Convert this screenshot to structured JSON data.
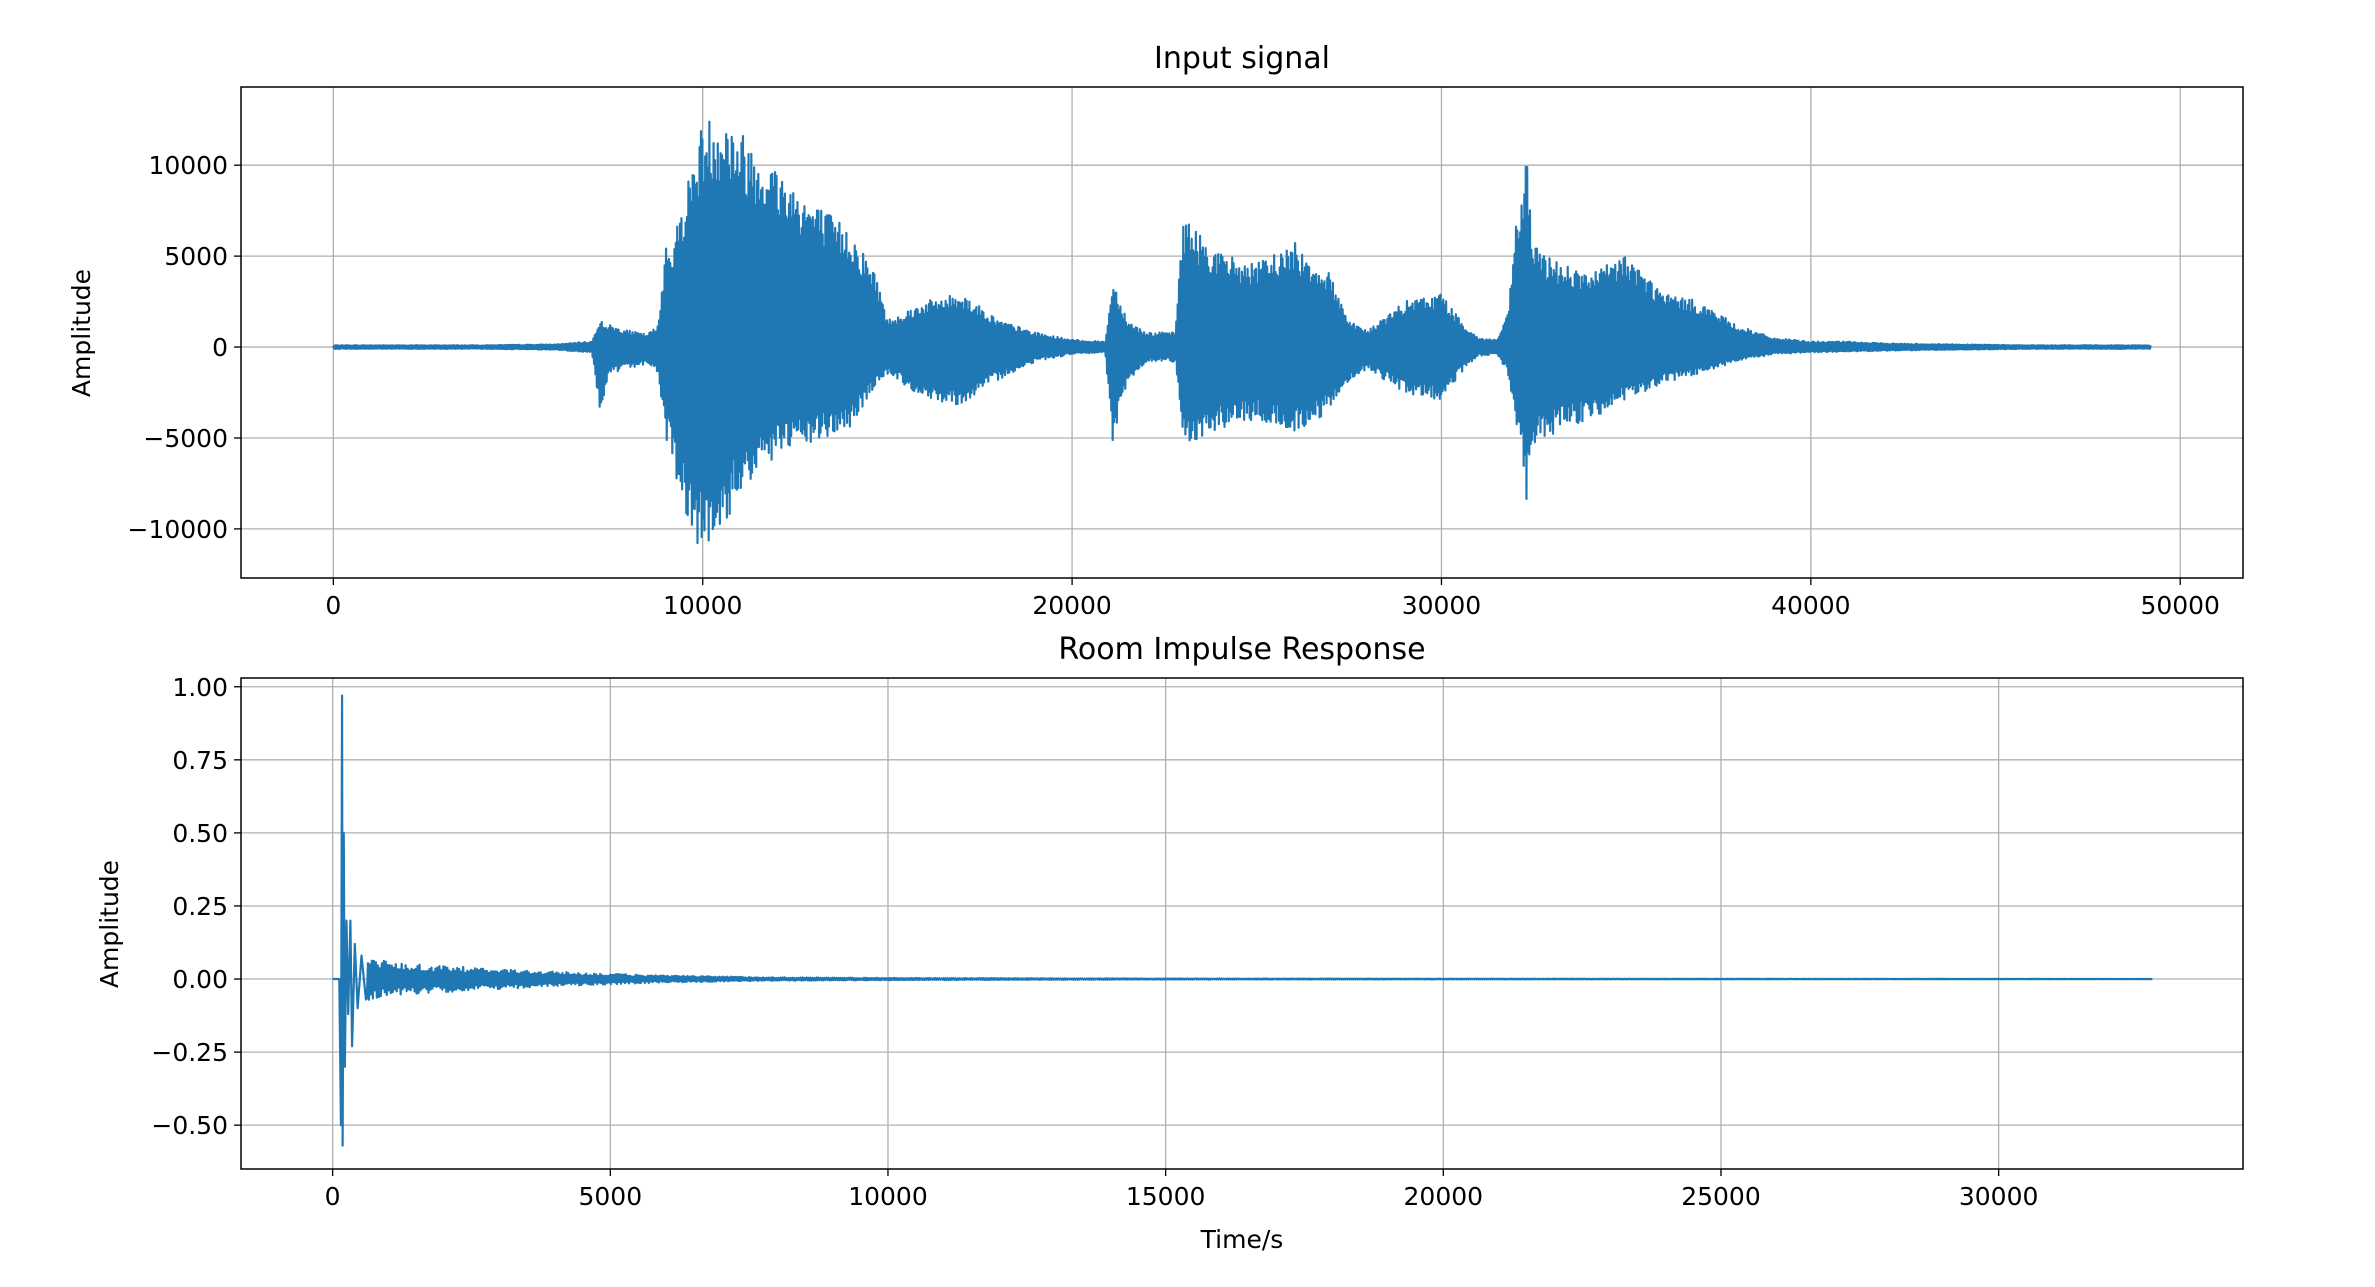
{
  "chart_data": [
    {
      "type": "line",
      "title": "Input signal",
      "xlabel": "",
      "ylabel": "Amplitude",
      "xlim": [
        -2500,
        51700
      ],
      "ylim": [
        -12700,
        14300
      ],
      "xticks": [
        0,
        10000,
        20000,
        30000,
        40000,
        50000
      ],
      "xtick_labels": [
        "0",
        "10000",
        "20000",
        "30000",
        "40000",
        "50000"
      ],
      "yticks": [
        -10000,
        -5000,
        0,
        5000,
        10000
      ],
      "ytick_labels": [
        "−10000",
        "−5000",
        "0",
        "5000",
        "10000"
      ],
      "grid": true,
      "legend": "none",
      "color": "#1f77b4",
      "x_end": 49200,
      "envelope_x": [
        0,
        2000,
        4000,
        6000,
        7000,
        7200,
        7500,
        8000,
        8500,
        8800,
        9000,
        9200,
        9500,
        10000,
        10500,
        11000,
        12000,
        13000,
        14000,
        14700,
        15000,
        16000,
        17000,
        18000,
        19000,
        20000,
        20900,
        21000,
        21100,
        21500,
        22000,
        22800,
        23000,
        23100,
        24000,
        25000,
        26000,
        27000,
        27500,
        28000,
        29000,
        30000,
        30500,
        31000,
        31500,
        31800,
        32000,
        32200,
        32300,
        32400,
        32500,
        33000,
        34000,
        35000,
        36000,
        37000,
        38000,
        39000,
        40000,
        41000,
        42000,
        44000,
        46000,
        48000,
        49200
      ],
      "envelope_upper": [
        100,
        100,
        100,
        150,
        300,
        1500,
        1200,
        900,
        700,
        1200,
        6000,
        5800,
        8500,
        12500,
        13000,
        12000,
        10000,
        8000,
        6500,
        4000,
        1500,
        2500,
        3000,
        1500,
        800,
        400,
        300,
        2000,
        3800,
        1500,
        800,
        800,
        7500,
        7000,
        5200,
        4600,
        5800,
        4000,
        1500,
        900,
        2500,
        3000,
        1500,
        500,
        400,
        1800,
        6500,
        9000,
        10800,
        8000,
        5500,
        5000,
        4000,
        5200,
        3000,
        2500,
        1200,
        500,
        300,
        300,
        200,
        150,
        100,
        100,
        100
      ],
      "envelope_lower": [
        -100,
        -100,
        -100,
        -150,
        -300,
        -3500,
        -1500,
        -1200,
        -900,
        -1500,
        -5000,
        -6500,
        -9000,
        -11500,
        -10500,
        -8000,
        -6000,
        -5300,
        -4500,
        -2000,
        -1500,
        -2800,
        -3200,
        -1800,
        -800,
        -400,
        -300,
        -3000,
        -5200,
        -2000,
        -800,
        -800,
        -5000,
        -5300,
        -4500,
        -4000,
        -4800,
        -3500,
        -1800,
        -1200,
        -2500,
        -3000,
        -1500,
        -500,
        -400,
        -1500,
        -4000,
        -6000,
        -8800,
        -6000,
        -5500,
        -4800,
        -4000,
        -3000,
        -2000,
        -1500,
        -800,
        -400,
        -300,
        -250,
        -200,
        -150,
        -100,
        -100,
        -100
      ]
    },
    {
      "type": "line",
      "title": "Room Impulse Response",
      "xlabel": "Time/s",
      "ylabel": "Amplitude",
      "xlim": [
        -1650,
        34400
      ],
      "ylim": [
        -0.65,
        1.03
      ],
      "xticks": [
        0,
        5000,
        10000,
        15000,
        20000,
        25000,
        30000
      ],
      "xtick_labels": [
        "0",
        "5000",
        "10000",
        "15000",
        "20000",
        "25000",
        "30000"
      ],
      "yticks": [
        -0.5,
        -0.25,
        0,
        0.25,
        0.5,
        0.75,
        1.0
      ],
      "ytick_labels": [
        "−0.50",
        "−0.25",
        "0.00",
        "0.25",
        "0.50",
        "0.75",
        "1.00"
      ],
      "grid": true,
      "legend": "none",
      "color": "#1f77b4",
      "x_end": 32768,
      "spikes": [
        {
          "x": 0,
          "y": 0
        },
        {
          "x": 120,
          "y": 0.0
        },
        {
          "x": 150,
          "y": -0.5
        },
        {
          "x": 170,
          "y": 0.97
        },
        {
          "x": 180,
          "y": -0.57
        },
        {
          "x": 200,
          "y": 0.5
        },
        {
          "x": 220,
          "y": -0.3
        },
        {
          "x": 250,
          "y": 0.2
        },
        {
          "x": 280,
          "y": -0.12
        },
        {
          "x": 320,
          "y": 0.2
        },
        {
          "x": 350,
          "y": -0.23
        },
        {
          "x": 400,
          "y": 0.12
        },
        {
          "x": 450,
          "y": -0.1
        },
        {
          "x": 520,
          "y": 0.08
        },
        {
          "x": 600,
          "y": -0.07
        }
      ],
      "decay_x": [
        600,
        1000,
        2000,
        3000,
        4000,
        5000,
        6000,
        7000,
        8000,
        10000,
        15000,
        20000,
        25000,
        30000,
        32768
      ],
      "decay_amp": [
        0.08,
        0.06,
        0.045,
        0.035,
        0.025,
        0.018,
        0.012,
        0.009,
        0.006,
        0.004,
        0.002,
        0.0015,
        0.001,
        0.0008,
        0.0005
      ]
    }
  ]
}
